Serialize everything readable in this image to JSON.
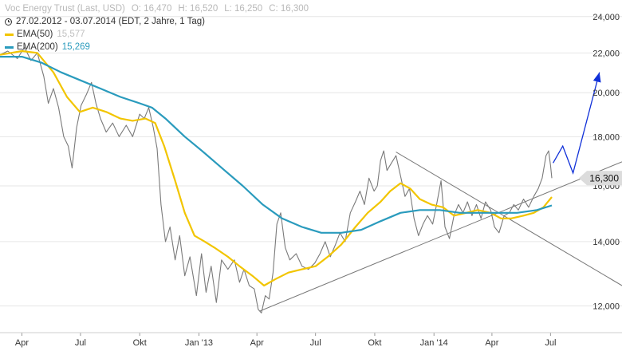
{
  "legend": {
    "instrument": "Voc Energy Trust (Last, USD)",
    "open": "O: 16,470",
    "high": "H: 16,520",
    "low": "L: 16,250",
    "close": "C: 16,300",
    "period": "27.02.2012 - 03.07.2014 (EDT, 2 Jahre, 1 Tag)",
    "ema50_label": "EMA(50)",
    "ema50_value": "15,577",
    "ema200_label": "EMA(200)",
    "ema200_value": "15,269",
    "clock_icon": "clock-icon"
  },
  "colors": {
    "price": "#7a7a7a",
    "ema50": "#f2c500",
    "ema200": "#2a9bbd",
    "trendline": "#777777",
    "forecast": "#1030d8",
    "grid": "#e6e6e6",
    "last_price_bg": "#dcdcdc"
  },
  "chart_data": {
    "type": "line",
    "title": "Voc Energy Trust (Last, USD)",
    "ylim": [
      11.3,
      24.5
    ],
    "y_scale": "log",
    "grid": "horizontal",
    "yticks": [
      {
        "value": 12,
        "label": "12,000"
      },
      {
        "value": 14,
        "label": "14,000"
      },
      {
        "value": 16,
        "label": "16,000"
      },
      {
        "value": 18,
        "label": "18,000"
      },
      {
        "value": 20,
        "label": "20,000"
      },
      {
        "value": 22,
        "label": "22,000"
      },
      {
        "value": 24,
        "label": "24,000"
      }
    ],
    "xlim": [
      "2012-02-27",
      "2014-10-20"
    ],
    "xticks": [
      {
        "date": "2012-04-01",
        "label": "Apr"
      },
      {
        "date": "2012-07-01",
        "label": "Jul"
      },
      {
        "date": "2012-10-01",
        "label": "Okt"
      },
      {
        "date": "2013-01-01",
        "label": "Jan '13"
      },
      {
        "date": "2013-04-01",
        "label": "Apr"
      },
      {
        "date": "2013-07-01",
        "label": "Jul"
      },
      {
        "date": "2013-10-01",
        "label": "Okt"
      },
      {
        "date": "2014-01-01",
        "label": "Jan '14"
      },
      {
        "date": "2014-04-01",
        "label": "Apr"
      },
      {
        "date": "2014-07-01",
        "label": "Jul"
      }
    ],
    "last_price": {
      "value": 16.3,
      "label": "16,300"
    },
    "series": [
      {
        "name": "Voc Energy Trust",
        "style": "price",
        "points": [
          [
            "2012-02-27",
            21.9
          ],
          [
            "2012-03-10",
            22.1
          ],
          [
            "2012-03-25",
            21.7
          ],
          [
            "2012-04-05",
            22.3
          ],
          [
            "2012-04-15",
            21.6
          ],
          [
            "2012-04-25",
            22.0
          ],
          [
            "2012-05-05",
            20.8
          ],
          [
            "2012-05-12",
            19.5
          ],
          [
            "2012-05-20",
            20.2
          ],
          [
            "2012-05-28",
            19.3
          ],
          [
            "2012-06-05",
            18.0
          ],
          [
            "2012-06-12",
            17.6
          ],
          [
            "2012-06-18",
            16.7
          ],
          [
            "2012-06-25",
            18.4
          ],
          [
            "2012-07-02",
            19.4
          ],
          [
            "2012-07-10",
            19.9
          ],
          [
            "2012-07-18",
            20.5
          ],
          [
            "2012-07-25",
            19.5
          ],
          [
            "2012-08-01",
            18.8
          ],
          [
            "2012-08-10",
            18.2
          ],
          [
            "2012-08-20",
            18.6
          ],
          [
            "2012-08-30",
            18.0
          ],
          [
            "2012-09-10",
            18.5
          ],
          [
            "2012-09-20",
            18.0
          ],
          [
            "2012-10-01",
            19.0
          ],
          [
            "2012-10-08",
            18.8
          ],
          [
            "2012-10-15",
            19.3
          ],
          [
            "2012-10-22",
            18.4
          ],
          [
            "2012-10-28",
            17.5
          ],
          [
            "2012-11-03",
            15.3
          ],
          [
            "2012-11-10",
            14.0
          ],
          [
            "2012-11-17",
            14.5
          ],
          [
            "2012-11-25",
            13.4
          ],
          [
            "2012-12-02",
            14.2
          ],
          [
            "2012-12-10",
            12.9
          ],
          [
            "2012-12-18",
            13.5
          ],
          [
            "2012-12-28",
            12.3
          ],
          [
            "2013-01-05",
            13.6
          ],
          [
            "2013-01-12",
            12.4
          ],
          [
            "2013-01-20",
            13.2
          ],
          [
            "2013-01-28",
            12.1
          ],
          [
            "2013-02-05",
            13.4
          ],
          [
            "2013-02-15",
            13.1
          ],
          [
            "2013-02-25",
            13.4
          ],
          [
            "2013-03-05",
            12.7
          ],
          [
            "2013-03-12",
            13.1
          ],
          [
            "2013-03-20",
            12.6
          ],
          [
            "2013-03-28",
            12.5
          ],
          [
            "2013-04-03",
            11.9
          ],
          [
            "2013-04-08",
            11.8
          ],
          [
            "2013-04-14",
            12.3
          ],
          [
            "2013-04-20",
            12.2
          ],
          [
            "2013-04-26",
            13.0
          ],
          [
            "2013-05-02",
            14.6
          ],
          [
            "2013-05-08",
            15.0
          ],
          [
            "2013-05-15",
            13.8
          ],
          [
            "2013-05-22",
            13.4
          ],
          [
            "2013-06-01",
            13.6
          ],
          [
            "2013-06-10",
            13.2
          ],
          [
            "2013-06-20",
            13.1
          ],
          [
            "2013-06-30",
            13.3
          ],
          [
            "2013-07-08",
            13.6
          ],
          [
            "2013-07-16",
            14.0
          ],
          [
            "2013-07-24",
            13.5
          ],
          [
            "2013-08-01",
            13.9
          ],
          [
            "2013-08-08",
            14.3
          ],
          [
            "2013-08-16",
            14.0
          ],
          [
            "2013-08-24",
            15.0
          ],
          [
            "2013-09-01",
            15.4
          ],
          [
            "2013-09-08",
            15.8
          ],
          [
            "2013-09-15",
            15.3
          ],
          [
            "2013-09-22",
            16.3
          ],
          [
            "2013-09-30",
            15.8
          ],
          [
            "2013-10-05",
            16.0
          ],
          [
            "2013-10-10",
            17.0
          ],
          [
            "2013-10-15",
            17.4
          ],
          [
            "2013-10-20",
            16.6
          ],
          [
            "2013-10-27",
            16.9
          ],
          [
            "2013-11-03",
            17.2
          ],
          [
            "2013-11-10",
            16.4
          ],
          [
            "2013-11-17",
            15.6
          ],
          [
            "2013-11-24",
            15.9
          ],
          [
            "2013-12-01",
            14.8
          ],
          [
            "2013-12-08",
            14.2
          ],
          [
            "2013-12-15",
            14.6
          ],
          [
            "2013-12-22",
            14.9
          ],
          [
            "2013-12-30",
            14.6
          ],
          [
            "2014-01-05",
            15.3
          ],
          [
            "2014-01-12",
            16.2
          ],
          [
            "2014-01-18",
            14.5
          ],
          [
            "2014-01-25",
            14.1
          ],
          [
            "2014-02-01",
            14.9
          ],
          [
            "2014-02-08",
            15.3
          ],
          [
            "2014-02-15",
            15.0
          ],
          [
            "2014-02-22",
            15.4
          ],
          [
            "2014-03-01",
            14.9
          ],
          [
            "2014-03-08",
            15.3
          ],
          [
            "2014-03-15",
            14.8
          ],
          [
            "2014-03-22",
            15.4
          ],
          [
            "2014-03-30",
            15.1
          ],
          [
            "2014-04-05",
            14.5
          ],
          [
            "2014-04-12",
            14.3
          ],
          [
            "2014-04-20",
            14.9
          ],
          [
            "2014-04-28",
            15.0
          ],
          [
            "2014-05-05",
            15.3
          ],
          [
            "2014-05-12",
            15.1
          ],
          [
            "2014-05-20",
            15.5
          ],
          [
            "2014-05-28",
            15.2
          ],
          [
            "2014-06-05",
            15.6
          ],
          [
            "2014-06-12",
            15.9
          ],
          [
            "2014-06-18",
            16.3
          ],
          [
            "2014-06-24",
            17.2
          ],
          [
            "2014-06-28",
            17.4
          ],
          [
            "2014-07-01",
            16.8
          ],
          [
            "2014-07-03",
            16.3
          ]
        ]
      },
      {
        "name": "EMA(50)",
        "style": "ema50",
        "points": [
          [
            "2012-02-27",
            21.9
          ],
          [
            "2012-04-01",
            22.1
          ],
          [
            "2012-04-25",
            22.0
          ],
          [
            "2012-05-20",
            21.0
          ],
          [
            "2012-06-10",
            19.8
          ],
          [
            "2012-06-30",
            19.1
          ],
          [
            "2012-07-20",
            19.3
          ],
          [
            "2012-08-10",
            19.1
          ],
          [
            "2012-09-01",
            18.8
          ],
          [
            "2012-09-20",
            18.7
          ],
          [
            "2012-10-10",
            18.8
          ],
          [
            "2012-10-25",
            18.6
          ],
          [
            "2012-11-08",
            17.6
          ],
          [
            "2012-11-25",
            16.2
          ],
          [
            "2012-12-10",
            15.0
          ],
          [
            "2012-12-25",
            14.2
          ],
          [
            "2013-01-10",
            14.0
          ],
          [
            "2013-01-25",
            13.8
          ],
          [
            "2013-02-15",
            13.5
          ],
          [
            "2013-03-05",
            13.2
          ],
          [
            "2013-03-25",
            12.9
          ],
          [
            "2013-04-12",
            12.6
          ],
          [
            "2013-04-30",
            12.8
          ],
          [
            "2013-05-20",
            13.0
          ],
          [
            "2013-06-10",
            13.1
          ],
          [
            "2013-07-01",
            13.2
          ],
          [
            "2013-07-20",
            13.5
          ],
          [
            "2013-08-10",
            13.9
          ],
          [
            "2013-09-01",
            14.5
          ],
          [
            "2013-09-20",
            15.0
          ],
          [
            "2013-10-10",
            15.4
          ],
          [
            "2013-10-25",
            15.8
          ],
          [
            "2013-11-10",
            16.1
          ],
          [
            "2013-11-25",
            15.9
          ],
          [
            "2013-12-10",
            15.5
          ],
          [
            "2013-12-28",
            15.3
          ],
          [
            "2014-01-15",
            15.2
          ],
          [
            "2014-02-01",
            14.9
          ],
          [
            "2014-02-20",
            15.0
          ],
          [
            "2014-03-10",
            15.1
          ],
          [
            "2014-03-30",
            15.0
          ],
          [
            "2014-04-15",
            14.8
          ],
          [
            "2014-05-01",
            14.8
          ],
          [
            "2014-05-20",
            14.9
          ],
          [
            "2014-06-05",
            15.0
          ],
          [
            "2014-06-20",
            15.2
          ],
          [
            "2014-07-03",
            15.577
          ]
        ]
      },
      {
        "name": "EMA(200)",
        "style": "ema200",
        "points": [
          [
            "2012-02-27",
            21.8
          ],
          [
            "2012-04-01",
            21.8
          ],
          [
            "2012-05-01",
            21.5
          ],
          [
            "2012-06-01",
            21.0
          ],
          [
            "2012-07-01",
            20.6
          ],
          [
            "2012-08-01",
            20.2
          ],
          [
            "2012-09-01",
            19.8
          ],
          [
            "2012-10-01",
            19.5
          ],
          [
            "2012-10-20",
            19.3
          ],
          [
            "2012-11-10",
            18.8
          ],
          [
            "2012-12-10",
            18.0
          ],
          [
            "2013-01-10",
            17.3
          ],
          [
            "2013-02-10",
            16.6
          ],
          [
            "2013-03-10",
            16.0
          ],
          [
            "2013-04-10",
            15.3
          ],
          [
            "2013-05-10",
            14.8
          ],
          [
            "2013-06-10",
            14.5
          ],
          [
            "2013-07-10",
            14.3
          ],
          [
            "2013-08-10",
            14.3
          ],
          [
            "2013-09-10",
            14.4
          ],
          [
            "2013-10-10",
            14.7
          ],
          [
            "2013-11-10",
            15.0
          ],
          [
            "2013-12-10",
            15.1
          ],
          [
            "2014-01-10",
            15.1
          ],
          [
            "2014-02-10",
            15.0
          ],
          [
            "2014-03-10",
            15.0
          ],
          [
            "2014-04-10",
            15.0
          ],
          [
            "2014-05-10",
            15.0
          ],
          [
            "2014-06-10",
            15.1
          ],
          [
            "2014-07-03",
            15.269
          ]
        ]
      }
    ],
    "trendlines": [
      {
        "name": "rising-support",
        "points": [
          [
            "2013-04-05",
            11.85
          ],
          [
            "2014-10-20",
            16.95
          ]
        ]
      },
      {
        "name": "falling-resistance",
        "points": [
          [
            "2013-11-03",
            17.35
          ],
          [
            "2014-10-20",
            12.6
          ]
        ]
      }
    ],
    "forecast": {
      "points": [
        [
          "2014-07-05",
          16.9
        ],
        [
          "2014-07-20",
          17.6
        ],
        [
          "2014-08-05",
          16.5
        ],
        [
          "2014-09-15",
          21.0
        ]
      ],
      "arrow": "end"
    }
  }
}
